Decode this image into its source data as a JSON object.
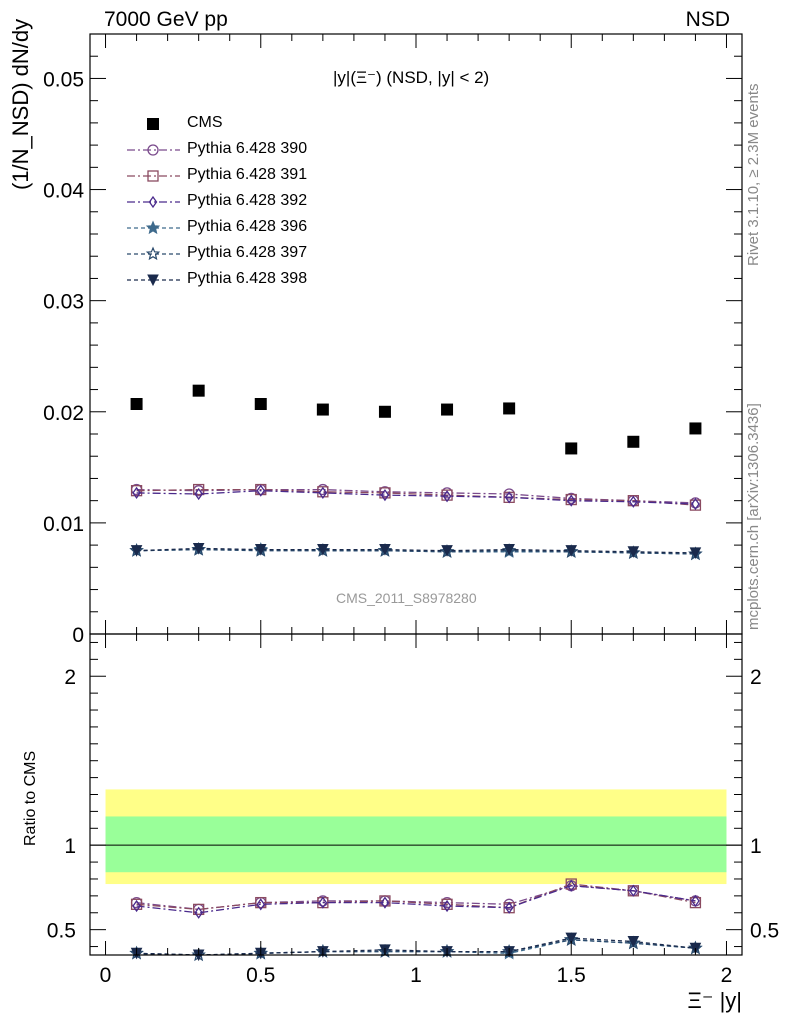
{
  "header": {
    "energy": "7000 GeV pp",
    "process": "NSD",
    "rivet": "Rivet 3.1.10, ≥ 2.3M events",
    "mcplots": "mcplots.cern.ch [arXiv:1306.3436]",
    "analysis_id": "CMS_2011_S8978280"
  },
  "chart_data": {
    "type": "scatter",
    "title": "|y|(Ξ⁻) (NSD, |y| < 2)",
    "xlabel": "Ξ⁻ |y|",
    "ylabel": "(1/N_NSD) dN/dy",
    "ylabel_ratio": "Ratio to CMS",
    "xlim": [
      -0.05,
      2.05
    ],
    "ylim": [
      0,
      0.054
    ],
    "ratio_ylim": [
      0.35,
      2.25
    ],
    "x_ticks": [
      "0",
      "0.5",
      "1",
      "1.5",
      "2"
    ],
    "y_ticks": [
      "0",
      "0.01",
      "0.02",
      "0.03",
      "0.04",
      "0.05"
    ],
    "ratio_ticks": [
      "0.5",
      "1",
      "2"
    ],
    "legend_position": "top-left",
    "x": [
      0.1,
      0.3,
      0.5,
      0.7,
      0.9,
      1.1,
      1.3,
      1.5,
      1.7,
      1.9
    ],
    "data": {
      "name": "CMS",
      "values": [
        0.0207,
        0.0219,
        0.0207,
        0.0202,
        0.02,
        0.0202,
        0.0203,
        0.0167,
        0.0173,
        0.0185
      ]
    },
    "ratio_band": {
      "inner": [
        0.84,
        1.17
      ],
      "outer": [
        0.77,
        1.33
      ]
    },
    "series": [
      {
        "name": "Pythia 6.428 390",
        "color": "#7a4a8c",
        "marker": "circle-open",
        "dash": "8,3,2,3",
        "values": [
          0.013,
          0.0129,
          0.013,
          0.013,
          0.0128,
          0.0127,
          0.0126,
          0.0122,
          0.012,
          0.0118
        ],
        "ratio": [
          0.66,
          0.62,
          0.66,
          0.67,
          0.67,
          0.66,
          0.65,
          0.76,
          0.73,
          0.67
        ]
      },
      {
        "name": "Pythia 6.428 391",
        "color": "#8a4a60",
        "marker": "square-open",
        "dash": "8,3,2,3",
        "values": [
          0.0129,
          0.013,
          0.013,
          0.0128,
          0.0127,
          0.0125,
          0.0123,
          0.0121,
          0.012,
          0.0116
        ],
        "ratio": [
          0.65,
          0.62,
          0.66,
          0.66,
          0.67,
          0.65,
          0.63,
          0.77,
          0.73,
          0.66
        ]
      },
      {
        "name": "Pythia 6.428 392",
        "color": "#4a2a8c",
        "marker": "diamond-open",
        "dash": "8,3,2,3",
        "values": [
          0.0127,
          0.0126,
          0.0129,
          0.0127,
          0.0125,
          0.0124,
          0.0123,
          0.012,
          0.0119,
          0.0117
        ],
        "ratio": [
          0.64,
          0.6,
          0.65,
          0.66,
          0.66,
          0.64,
          0.63,
          0.76,
          0.73,
          0.67
        ]
      },
      {
        "name": "Pythia 6.428 396",
        "color": "#3e6a8c",
        "marker": "star-filled",
        "dash": "4,3",
        "values": [
          0.0075,
          0.0076,
          0.0076,
          0.0075,
          0.0075,
          0.0074,
          0.0074,
          0.0074,
          0.0073,
          0.0072
        ],
        "ratio": [
          0.36,
          0.34,
          0.36,
          0.37,
          0.37,
          0.37,
          0.36,
          0.44,
          0.42,
          0.39
        ]
      },
      {
        "name": "Pythia 6.428 397",
        "color": "#2a4a6c",
        "marker": "star-open",
        "dash": "4,3",
        "values": [
          0.0075,
          0.0076,
          0.0075,
          0.0075,
          0.0075,
          0.0074,
          0.0075,
          0.0074,
          0.0073,
          0.0072
        ],
        "ratio": [
          0.36,
          0.35,
          0.36,
          0.37,
          0.37,
          0.37,
          0.37,
          0.44,
          0.42,
          0.39
        ]
      },
      {
        "name": "Pythia 6.428 398",
        "color": "#1a2a4c",
        "marker": "triangle-down-filled",
        "dash": "4,3",
        "values": [
          0.0075,
          0.0077,
          0.0076,
          0.0076,
          0.0076,
          0.0075,
          0.0076,
          0.0075,
          0.0074,
          0.0073
        ],
        "ratio": [
          0.36,
          0.35,
          0.36,
          0.37,
          0.38,
          0.37,
          0.37,
          0.45,
          0.43,
          0.39
        ]
      }
    ]
  }
}
